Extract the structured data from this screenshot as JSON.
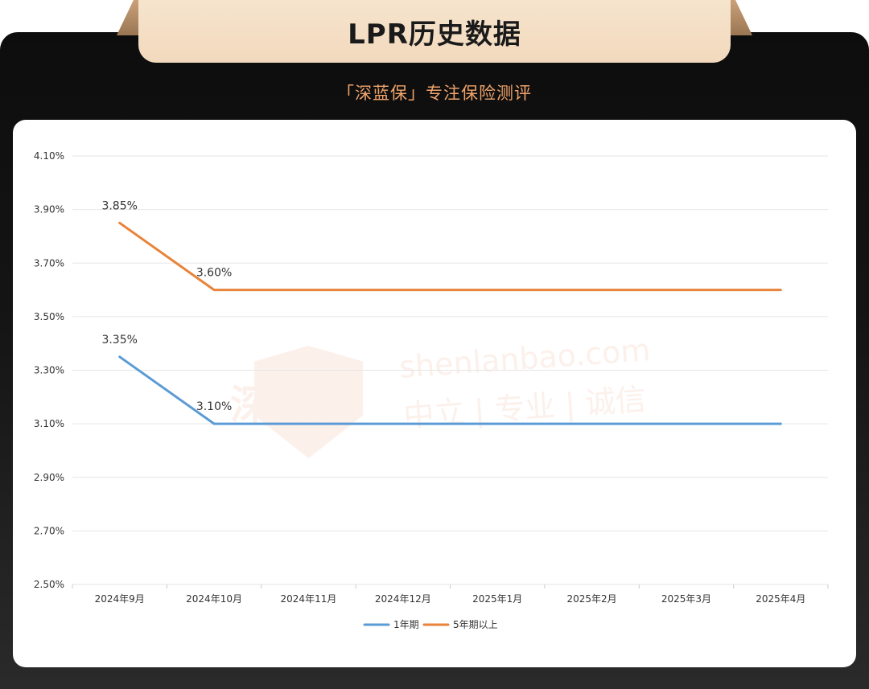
{
  "header": {
    "title": "LPR历史数据",
    "subtitle": "「深蓝保」专注保险测评"
  },
  "watermark": {
    "brand": "深蓝保",
    "url": "shenlanbao.com",
    "motto": "中立 | 专业 | 诚信"
  },
  "colors": {
    "series_1y": "#5b9bd5",
    "series_5y": "#e8833a",
    "grid": "#e6e6e6",
    "axis_text": "#333333",
    "subtitle": "#f0a46c",
    "title_tab": "#f4ddc4"
  },
  "chart_data": {
    "type": "line",
    "title": "",
    "xlabel": "",
    "ylabel": "",
    "categories": [
      "2024年9月",
      "2024年10月",
      "2024年11月",
      "2024年12月",
      "2025年1月",
      "2025年2月",
      "2025年3月",
      "2025年4月"
    ],
    "ylim": [
      2.5,
      4.1
    ],
    "yticks": [
      2.5,
      2.7,
      2.9,
      3.1,
      3.3,
      3.5,
      3.7,
      3.9,
      4.1
    ],
    "ytick_labels": [
      "2.50%",
      "2.70%",
      "2.90%",
      "3.10%",
      "3.30%",
      "3.50%",
      "3.70%",
      "3.90%",
      "4.10%"
    ],
    "grid": true,
    "legend_position": "bottom",
    "series": [
      {
        "name": "1年期",
        "values": [
          3.35,
          3.1,
          3.1,
          3.1,
          3.1,
          3.1,
          3.1,
          3.1
        ],
        "labels": [
          "3.35%",
          "3.10%",
          "",
          "",
          "",
          "",
          "",
          ""
        ]
      },
      {
        "name": "5年期以上",
        "values": [
          3.85,
          3.6,
          3.6,
          3.6,
          3.6,
          3.6,
          3.6,
          3.6
        ],
        "labels": [
          "3.85%",
          "3.60%",
          "",
          "",
          "",
          "",
          "",
          ""
        ]
      }
    ]
  }
}
